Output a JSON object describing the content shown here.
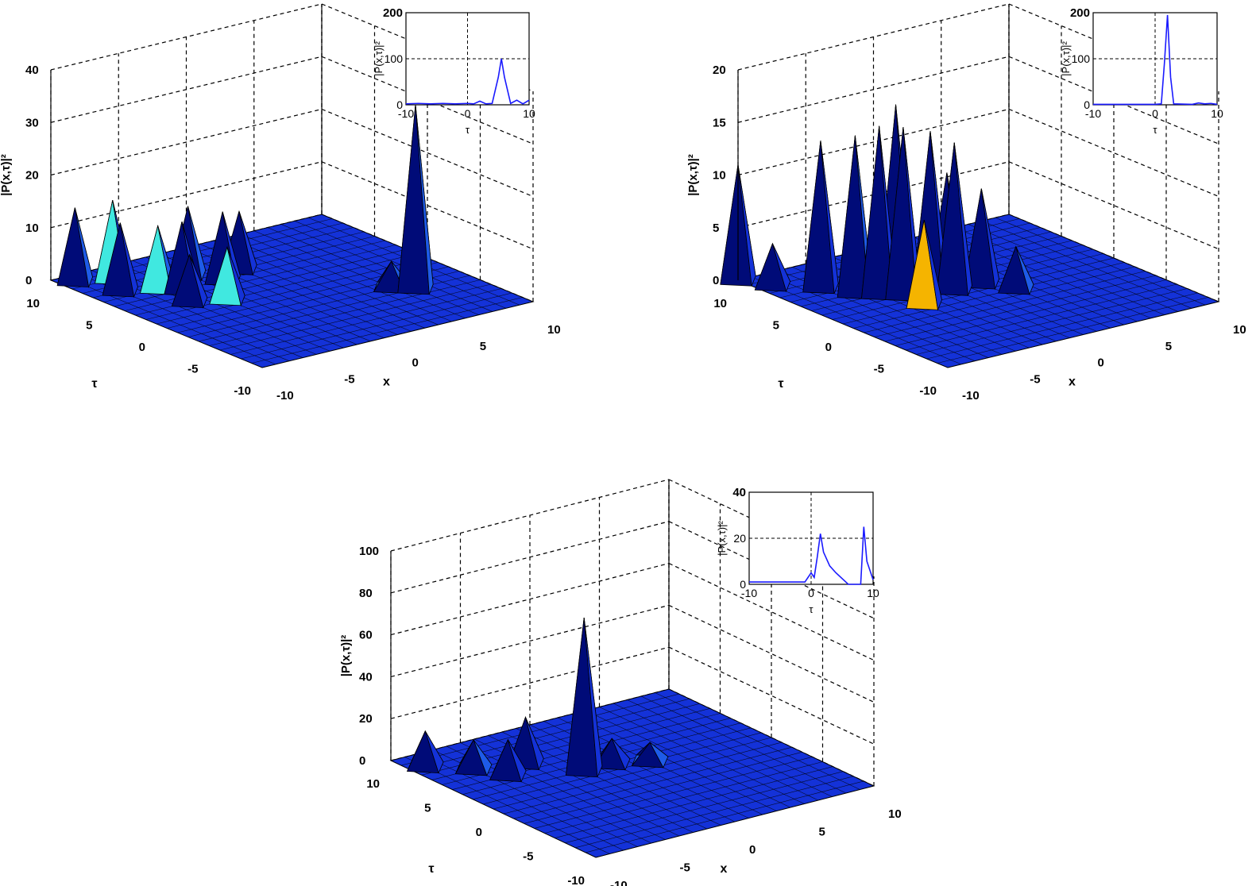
{
  "colors": {
    "surface_dark": "#000b78",
    "surface_mid": "#1432d8",
    "accent_cyan": "#40e8e0",
    "accent_yellow": "#f5b400",
    "inset_line": "#1a1aff"
  },
  "chart_data": [
    {
      "type": "surface",
      "panel": "top-left",
      "zlabel": "|P(x,τ)|²",
      "xlabel": "x",
      "ylabel": "τ",
      "zlim": [
        0,
        40
      ],
      "zticks": [
        "0",
        "10",
        "20",
        "30",
        "40"
      ],
      "xticks": [
        "-10",
        "-5",
        "0",
        "5",
        "10"
      ],
      "yticks": [
        "-10",
        "-5",
        "0",
        "5",
        "10"
      ],
      "peaks": [
        {
          "x": -9,
          "tau": 9,
          "value": 14
        },
        {
          "x": -8,
          "tau": 6,
          "value": 13
        },
        {
          "x": -7,
          "tau": 8,
          "value": 15
        },
        {
          "x": -6,
          "tau": 5,
          "value": 12
        },
        {
          "x": -6,
          "tau": 2,
          "value": 9
        },
        {
          "x": -5,
          "tau": 4,
          "value": 13
        },
        {
          "x": -4,
          "tau": 1,
          "value": 10
        },
        {
          "x": -3,
          "tau": 6,
          "value": 13
        },
        {
          "x": -2,
          "tau": 4,
          "value": 13
        },
        {
          "x": 0,
          "tau": 5,
          "value": 11
        },
        {
          "x": 6,
          "tau": -4,
          "value": 35
        },
        {
          "x": 5,
          "tau": -3,
          "value": 5
        }
      ],
      "inset": {
        "ylabel": "|P(x,τ)|²",
        "xlabel": "τ",
        "xlim": [
          -10,
          10
        ],
        "ylim": [
          0,
          200
        ],
        "xticks": [
          "-10",
          "0",
          "10"
        ],
        "yticks": [
          "0",
          "100",
          "200"
        ],
        "x": [
          -10,
          -8,
          -6,
          -4,
          -2,
          0,
          1,
          2,
          3,
          4,
          5,
          5.5,
          6,
          7,
          8,
          9,
          10
        ],
        "y": [
          2,
          3,
          2,
          3,
          2,
          3,
          2,
          8,
          2,
          3,
          60,
          100,
          60,
          3,
          10,
          2,
          10
        ]
      }
    },
    {
      "type": "surface",
      "panel": "top-right",
      "zlabel": "|P(x,τ)|²",
      "xlabel": "x",
      "ylabel": "τ",
      "zlim": [
        0,
        20
      ],
      "zticks": [
        "0",
        "5",
        "10",
        "15",
        "20"
      ],
      "xticks": [
        "-10",
        "-5",
        "0",
        "5",
        "10"
      ],
      "yticks": [
        "-10",
        "-5",
        "0",
        "5",
        "10"
      ],
      "peaks": [
        {
          "x": -10,
          "tau": 10,
          "value": 11
        },
        {
          "x": -9,
          "tau": 8,
          "value": 4
        },
        {
          "x": -7,
          "tau": 6,
          "value": 14
        },
        {
          "x": -6,
          "tau": 4,
          "value": 15
        },
        {
          "x": -5,
          "tau": 3,
          "value": 16
        },
        {
          "x": -4,
          "tau": 2,
          "value": 16
        },
        {
          "x": -3,
          "tau": 4,
          "value": 17
        },
        {
          "x": -2,
          "tau": 2,
          "value": 15
        },
        {
          "x": -1,
          "tau": 1,
          "value": 14
        },
        {
          "x": -4,
          "tau": 0,
          "value": 8
        },
        {
          "x": 0,
          "tau": 3,
          "value": 10
        },
        {
          "x": 1,
          "tau": 1,
          "value": 9
        },
        {
          "x": 2,
          "tau": -1,
          "value": 4
        }
      ],
      "inset": {
        "ylabel": "|P(x,τ)|²",
        "xlabel": "τ",
        "xlim": [
          -10,
          10
        ],
        "ylim": [
          0,
          200
        ],
        "xticks": [
          "-10",
          "0",
          "10"
        ],
        "yticks": [
          "0",
          "100",
          "200"
        ],
        "x": [
          -10,
          -6,
          -2,
          0,
          1,
          1.5,
          2,
          2.5,
          3,
          6,
          7,
          8,
          9,
          10
        ],
        "y": [
          1,
          1,
          1,
          1,
          2,
          90,
          195,
          60,
          2,
          1,
          4,
          2,
          3,
          1
        ]
      }
    },
    {
      "type": "surface",
      "panel": "bottom",
      "zlabel": "|P(x,τ)|²",
      "xlabel": "x",
      "ylabel": "τ",
      "zlim": [
        0,
        100
      ],
      "zticks": [
        "0",
        "20",
        "40",
        "60",
        "80",
        "100"
      ],
      "xticks": [
        "-10",
        "-5",
        "0",
        "5",
        "10"
      ],
      "yticks": [
        "-10",
        "-5",
        "0",
        "5",
        "10"
      ],
      "peaks": [
        {
          "x": -9,
          "tau": 8,
          "value": 17
        },
        {
          "x": -7,
          "tau": 6,
          "value": 14
        },
        {
          "x": -6,
          "tau": 4,
          "value": 17
        },
        {
          "x": -4,
          "tau": 5,
          "value": 22
        },
        {
          "x": -2,
          "tau": 2,
          "value": 73
        },
        {
          "x": 0,
          "tau": 2,
          "value": 12
        },
        {
          "x": 2,
          "tau": 1,
          "value": 9
        }
      ],
      "inset": {
        "ylabel": "|P(x,τ)|²",
        "xlabel": "τ",
        "xlim": [
          -10,
          10
        ],
        "ylim": [
          0,
          40
        ],
        "xticks": [
          "-10",
          "0",
          "10"
        ],
        "yticks": [
          "0",
          "20",
          "40"
        ],
        "x": [
          -10,
          -6,
          -2,
          -1,
          0,
          0.5,
          1,
          1.5,
          2,
          3,
          4,
          6,
          7,
          8,
          8.5,
          9,
          10
        ],
        "y": [
          1,
          1,
          1,
          1,
          5,
          3,
          12,
          22,
          14,
          8,
          5,
          0,
          0,
          0,
          25,
          10,
          2
        ]
      }
    }
  ]
}
